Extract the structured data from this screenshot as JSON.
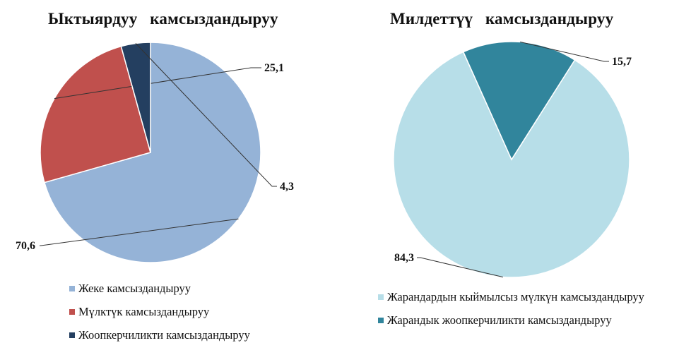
{
  "chart_data": [
    {
      "type": "pie",
      "title": "Ыктыярдуу   камсыздандыруу",
      "slices": [
        {
          "label": "Жеке камсыздандыруу",
          "value": 70.6,
          "value_label": "70,6",
          "color": "#95B3D7"
        },
        {
          "label": "Мүлктүк камсыздандыруу",
          "value": 25.1,
          "value_label": "25,1",
          "color": "#C0504D"
        },
        {
          "label": "Жоопкерчиликти камсыздандыруу",
          "value": 4.3,
          "value_label": "4,3",
          "color": "#243F60"
        }
      ],
      "legend_position": "bottom"
    },
    {
      "type": "pie",
      "title": "Милдеттүү   камсыздандыруу",
      "slices": [
        {
          "label": "Жарандардын кыймылсыз мүлкүн камсыздандыруу",
          "value": 84.3,
          "value_label": "84,3",
          "color": "#B7DEE8"
        },
        {
          "label": "Жарандык жоопкерчиликти камсыздандыруу",
          "value": 15.7,
          "value_label": "15,7",
          "color": "#31859C"
        }
      ],
      "legend_position": "bottom"
    }
  ]
}
